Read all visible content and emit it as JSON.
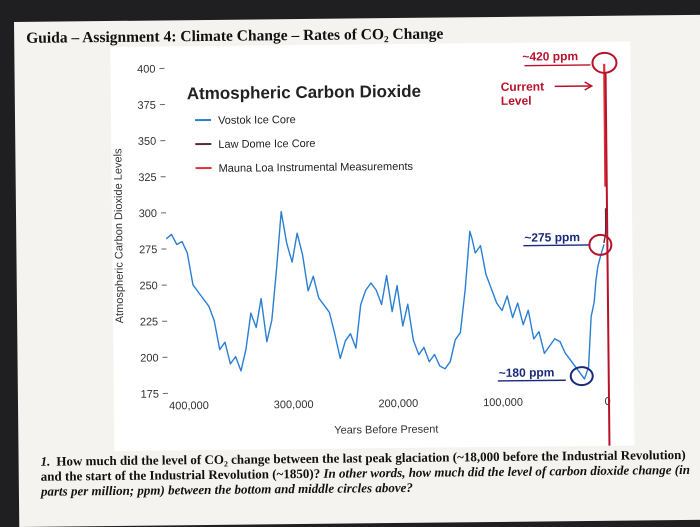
{
  "document": {
    "title": "Guida – Assignment 4: Climate Change – Rates of CO₂ Change"
  },
  "chart_data": {
    "type": "line",
    "title": "Atmospheric Carbon Dioxide",
    "xlabel": "Years Before Present",
    "ylabel": "Atmospheric Carbon Dioxide Levels",
    "xlim": [
      420000,
      -6000
    ],
    "ylim": [
      175,
      400
    ],
    "x_ticks": [
      400000,
      300000,
      200000,
      100000,
      0
    ],
    "x_tick_labels": [
      "400,000",
      "300,000",
      "200,000",
      "100,000",
      "0"
    ],
    "y_ticks": [
      175,
      200,
      225,
      250,
      275,
      300,
      325,
      350,
      375,
      400
    ],
    "y_tick_labels": [
      "175",
      "200",
      "225",
      "250",
      "275",
      "300",
      "325",
      "350",
      "375",
      "400"
    ],
    "legend_position": "top-left",
    "series": [
      {
        "name": "Vostok Ice Core",
        "color": "#2a7fd4",
        "x": [
          420000,
          415000,
          410000,
          405000,
          400000,
          395000,
          390000,
          385000,
          380000,
          375000,
          370000,
          365000,
          360000,
          355000,
          350000,
          345000,
          340000,
          335000,
          330000,
          325000,
          320000,
          315000,
          310000,
          305000,
          300000,
          295000,
          290000,
          285000,
          280000,
          275000,
          270000,
          265000,
          260000,
          255000,
          250000,
          245000,
          240000,
          235000,
          230000,
          225000,
          220000,
          215000,
          210000,
          205000,
          200000,
          195000,
          190000,
          185000,
          180000,
          175000,
          170000,
          165000,
          160000,
          155000,
          150000,
          145000,
          140000,
          135000,
          130000,
          128000,
          125000,
          120000,
          115000,
          110000,
          105000,
          100000,
          95000,
          90000,
          85000,
          80000,
          75000,
          70000,
          65000,
          60000,
          55000,
          50000,
          45000,
          40000,
          35000,
          30000,
          25000,
          22000,
          18000,
          15000,
          12000,
          10000,
          8000,
          5000,
          2000
        ],
        "y": [
          282,
          285,
          278,
          280,
          272,
          250,
          245,
          240,
          235,
          225,
          205,
          210,
          195,
          200,
          190,
          205,
          230,
          220,
          240,
          210,
          225,
          260,
          300,
          278,
          265,
          285,
          270,
          245,
          255,
          240,
          235,
          230,
          215,
          198,
          210,
          215,
          205,
          235,
          245,
          250,
          245,
          235,
          255,
          230,
          248,
          220,
          235,
          210,
          200,
          205,
          195,
          200,
          192,
          190,
          195,
          210,
          215,
          245,
          285,
          280,
          270,
          275,
          255,
          245,
          235,
          230,
          240,
          225,
          235,
          220,
          230,
          210,
          215,
          200,
          205,
          210,
          208,
          200,
          195,
          190,
          185,
          182,
          190,
          225,
          235,
          250,
          260,
          268,
          275
        ]
      },
      {
        "name": "Law Dome Ice Core",
        "color": "#5a2a3a",
        "x": [
          2000,
          1500,
          1000,
          500,
          200,
          100
        ],
        "y": [
          276,
          278,
          280,
          282,
          285,
          300
        ]
      },
      {
        "name": "Mauna Loa Instrumental Measurements",
        "color": "#e0303a",
        "x": [
          70,
          40,
          10
        ],
        "y": [
          315,
          350,
          400
        ]
      }
    ],
    "annotations": [
      {
        "text": "~420 ppm",
        "color": "#b8122a"
      },
      {
        "text": "Current",
        "color": "#b8122a"
      },
      {
        "text": "Level",
        "color": "#b8122a"
      },
      {
        "text": "~275 ppm",
        "color": "#1a2a7a"
      },
      {
        "text": "~180 ppm",
        "color": "#1a2a7a"
      }
    ]
  },
  "question": {
    "number": "1.",
    "text_bold": "How much did the level of CO₂ change between the last peak glaciation (~18,000 before the Industrial Revolution) and the start of the Industrial Revolution (~1850)?",
    "text_italic": "In other words, how much did the level of carbon dioxide change (in parts per million; ppm) between the bottom and middle circles above?"
  }
}
